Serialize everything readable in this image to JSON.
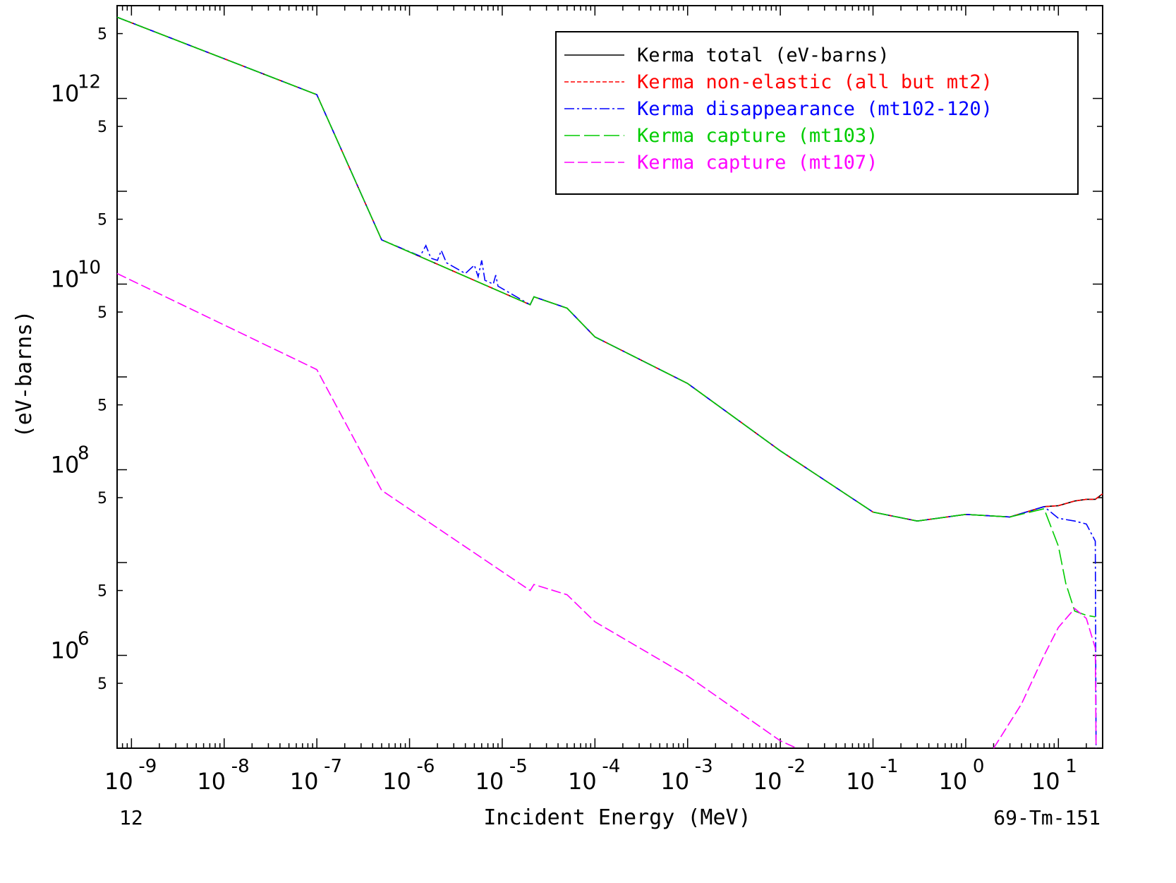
{
  "chart_data": {
    "type": "line",
    "title": "",
    "xlabel": "Incident Energy (MeV)",
    "ylabel": "(eV-barns)",
    "x_scale": "log",
    "y_scale": "log",
    "xlim": [
      7e-10,
      30
    ],
    "ylim": [
      100000.0,
      10000000000000.0
    ],
    "grid": false,
    "legend_position": "top-right",
    "x_ticks": [
      {
        "base": "10",
        "exp": "-9"
      },
      {
        "base": "10",
        "exp": "-8"
      },
      {
        "base": "10",
        "exp": "-7"
      },
      {
        "base": "10",
        "exp": "-6"
      },
      {
        "base": "10",
        "exp": "-5"
      },
      {
        "base": "10",
        "exp": "-4"
      },
      {
        "base": "10",
        "exp": "-3"
      },
      {
        "base": "10",
        "exp": "-2"
      },
      {
        "base": "10",
        "exp": "-1"
      },
      {
        "base": "10",
        "exp": "0"
      },
      {
        "base": "10",
        "exp": "1"
      }
    ],
    "y_ticks": [
      {
        "base": "10",
        "exp": "6"
      },
      {
        "base": "10",
        "exp": "8"
      },
      {
        "base": "10",
        "exp": "10"
      },
      {
        "base": "10",
        "exp": "12"
      }
    ],
    "y_minor_label": "5",
    "footer_left": "12",
    "footer_right": "69-Tm-151",
    "series": [
      {
        "name": "Kerma total  (eV-barns)",
        "color": "#000000",
        "dash": "solid",
        "points": [
          [
            7e-10,
            7500000000000.0
          ],
          [
            1e-07,
            1100000000000.0
          ],
          [
            5e-07,
            30000000000.0
          ],
          [
            2e-05,
            6000000000.0
          ],
          [
            2.2e-05,
            7300000000.0
          ],
          [
            5e-05,
            5500000000.0
          ],
          [
            0.0001,
            2700000000.0
          ],
          [
            0.001,
            850000000.0
          ],
          [
            0.01,
            160000000.0
          ],
          [
            0.1,
            35000000.0
          ],
          [
            0.3,
            28000000.0
          ],
          [
            1,
            33000000.0
          ],
          [
            3,
            31000000.0
          ],
          [
            7,
            40000000.0
          ],
          [
            10,
            41000000.0
          ],
          [
            15,
            46000000.0
          ],
          [
            20,
            48000000.0
          ],
          [
            25,
            48000000.0
          ],
          [
            30,
            55000000.0
          ]
        ]
      },
      {
        "name": "Kerma non-elastic (all but mt2)",
        "color": "#ff0000",
        "dash": "6,3",
        "points": [
          [
            7e-10,
            7500000000000.0
          ],
          [
            1e-07,
            1100000000000.0
          ],
          [
            5e-07,
            30000000000.0
          ],
          [
            2e-05,
            6000000000.0
          ],
          [
            2.2e-05,
            7300000000.0
          ],
          [
            5e-05,
            5500000000.0
          ],
          [
            0.0001,
            2700000000.0
          ],
          [
            0.001,
            850000000.0
          ],
          [
            0.01,
            160000000.0
          ],
          [
            0.1,
            35000000.0
          ],
          [
            0.3,
            28000000.0
          ],
          [
            1,
            33000000.0
          ],
          [
            3,
            31000000.0
          ],
          [
            7,
            40000000.0
          ],
          [
            10,
            41000000.0
          ],
          [
            15,
            46000000.0
          ],
          [
            20,
            48000000.0
          ],
          [
            25,
            48000000.0
          ],
          [
            30,
            55000000.0
          ]
        ]
      },
      {
        "name": "Kerma disappearance (mt102-120)",
        "color": "#0000ff",
        "dash": "14,4,3,4",
        "points": [
          [
            7e-10,
            7500000000000.0
          ],
          [
            1e-07,
            1100000000000.0
          ],
          [
            5e-07,
            30000000000.0
          ],
          [
            1.3e-06,
            20000000000.0
          ],
          [
            1.5e-06,
            26000000000.0
          ],
          [
            1.7e-06,
            19000000000.0
          ],
          [
            2e-06,
            18000000000.0
          ],
          [
            2.2e-06,
            23000000000.0
          ],
          [
            2.5e-06,
            17000000000.0
          ],
          [
            4e-06,
            13000000000.0
          ],
          [
            5e-06,
            16000000000.0
          ],
          [
            5.5e-06,
            12000000000.0
          ],
          [
            6e-06,
            18000000000.0
          ],
          [
            6.5e-06,
            11000000000.0
          ],
          [
            8e-06,
            10000000000.0
          ],
          [
            8.5e-06,
            12500000000.0
          ],
          [
            9e-06,
            9500000000.0
          ],
          [
            2e-05,
            6000000000.0
          ],
          [
            2.2e-05,
            7300000000.0
          ],
          [
            5e-05,
            5500000000.0
          ],
          [
            0.0001,
            2700000000.0
          ],
          [
            0.001,
            850000000.0
          ],
          [
            0.01,
            160000000.0
          ],
          [
            0.1,
            35000000.0
          ],
          [
            0.3,
            28000000.0
          ],
          [
            1,
            33000000.0
          ],
          [
            3,
            31000000.0
          ],
          [
            7,
            40000000.0
          ],
          [
            10,
            30000000.0
          ],
          [
            15,
            28000000.0
          ],
          [
            20,
            26000000.0
          ],
          [
            25,
            17000000.0
          ],
          [
            25.5,
            100000.0
          ]
        ]
      },
      {
        "name": "Kerma capture (mt103)",
        "color": "#00cc00",
        "dash": "22,6",
        "points": [
          [
            7e-10,
            7500000000000.0
          ],
          [
            1e-07,
            1100000000000.0
          ],
          [
            5e-07,
            30000000000.0
          ],
          [
            2e-05,
            6000000000.0
          ],
          [
            2.2e-05,
            7300000000.0
          ],
          [
            5e-05,
            5500000000.0
          ],
          [
            0.0001,
            2700000000.0
          ],
          [
            0.001,
            850000000.0
          ],
          [
            0.01,
            160000000.0
          ],
          [
            0.1,
            35000000.0
          ],
          [
            0.3,
            28000000.0
          ],
          [
            1,
            33000000.0
          ],
          [
            3,
            31000000.0
          ],
          [
            7,
            38000000.0
          ],
          [
            10,
            15000000.0
          ],
          [
            12,
            6000000.0
          ],
          [
            15,
            3000000.0
          ],
          [
            20,
            2700000.0
          ],
          [
            25,
            2600000.0
          ]
        ]
      },
      {
        "name": "Kerma capture (mt107)",
        "color": "#ff00ff",
        "dash": "14,5",
        "points": [
          [
            7e-10,
            13000000000.0
          ],
          [
            1e-07,
            1200000000.0
          ],
          [
            5e-07,
            60000000.0
          ],
          [
            2e-05,
            5000000.0
          ],
          [
            2.2e-05,
            5800000.0
          ],
          [
            5e-05,
            4500000.0
          ],
          [
            0.0001,
            2300000.0
          ],
          [
            0.001,
            600000.0
          ],
          [
            0.01,
            120000.0
          ],
          [
            0.015,
            80000.0
          ]
        ],
        "points_b": [
          [
            2,
            80000.0
          ],
          [
            4,
            300000.0
          ],
          [
            7,
            1000000.0
          ],
          [
            10,
            2000000.0
          ],
          [
            15,
            3200000.0
          ],
          [
            20,
            2500000.0
          ],
          [
            25,
            1200000.0
          ],
          [
            25.5,
            100000.0
          ]
        ]
      }
    ]
  }
}
